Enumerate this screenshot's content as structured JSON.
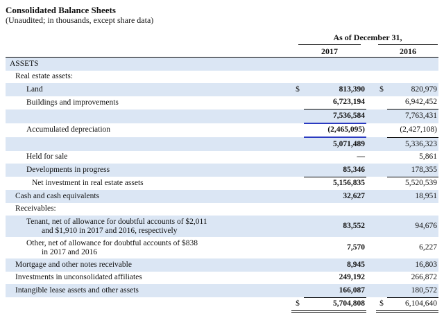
{
  "header": {
    "title": "Consolidated Balance Sheets",
    "subtitle": "(Unaudited; in thousands, except share data)",
    "period": "As of December 31,",
    "year1": "2017",
    "year2": "2016"
  },
  "rows": [
    {
      "label": "ASSETS",
      "s1": "",
      "v1": "",
      "s2": "",
      "v2": ""
    },
    {
      "label": "Real estate assets:",
      "s1": "",
      "v1": "",
      "s2": "",
      "v2": ""
    },
    {
      "label": "Land",
      "s1": "$",
      "v1": "813,390",
      "s2": "$",
      "v2": "820,979"
    },
    {
      "label": "Buildings and improvements",
      "s1": "",
      "v1": "6,723,194",
      "s2": "",
      "v2": "6,942,452"
    },
    {
      "label": "",
      "s1": "",
      "v1": "7,536,584",
      "s2": "",
      "v2": "7,763,431"
    },
    {
      "label": "Accumulated depreciation",
      "s1": "",
      "v1": "(2,465,095)",
      "s2": "",
      "v2": "(2,427,108)"
    },
    {
      "label": "",
      "s1": "",
      "v1": "5,071,489",
      "s2": "",
      "v2": "5,336,323"
    },
    {
      "label": "Held for sale",
      "s1": "",
      "v1": "—",
      "s2": "",
      "v2": "5,861"
    },
    {
      "label": "Developments in progress",
      "s1": "",
      "v1": "85,346",
      "s2": "",
      "v2": "178,355"
    },
    {
      "label": "Net investment in real estate assets",
      "s1": "",
      "v1": "5,156,835",
      "s2": "",
      "v2": "5,520,539"
    },
    {
      "label": "Cash and cash equivalents",
      "s1": "",
      "v1": "32,627",
      "s2": "",
      "v2": "18,951"
    },
    {
      "label": "Receivables:",
      "s1": "",
      "v1": "",
      "s2": "",
      "v2": ""
    },
    {
      "label": "Tenant, net of allowance for doubtful accounts of $2,011",
      "label2": "and $1,910 in 2017 and 2016, respectively",
      "s1": "",
      "v1": "83,552",
      "s2": "",
      "v2": "94,676"
    },
    {
      "label": "Other, net of allowance for doubtful accounts of $838",
      "label2": "in 2017 and 2016",
      "s1": "",
      "v1": "7,570",
      "s2": "",
      "v2": "6,227"
    },
    {
      "label": "Mortgage and other notes receivable",
      "s1": "",
      "v1": "8,945",
      "s2": "",
      "v2": "16,803"
    },
    {
      "label": "Investments in unconsolidated affiliates",
      "s1": "",
      "v1": "249,192",
      "s2": "",
      "v2": "266,872"
    },
    {
      "label": "Intangible lease assets and other assets",
      "s1": "",
      "v1": "166,087",
      "s2": "",
      "v2": "180,572"
    },
    {
      "label": "",
      "s1": "$",
      "v1": "5,704,808",
      "s2": "$",
      "v2": "6,104,640"
    }
  ]
}
